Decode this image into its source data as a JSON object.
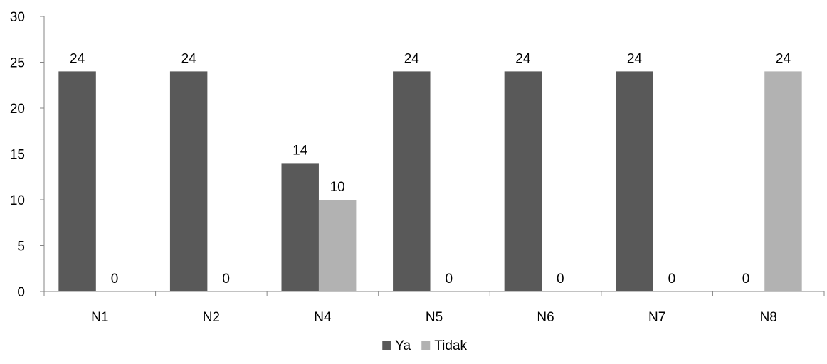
{
  "chart_data": {
    "type": "bar",
    "title": "",
    "xlabel": "",
    "ylabel": "",
    "categories": [
      "N1",
      "N2",
      "N4",
      "N5",
      "N6",
      "N7",
      "N8"
    ],
    "series": [
      {
        "name": "Ya",
        "color": "#595959",
        "values": [
          24,
          24,
          14,
          24,
          24,
          24,
          0
        ]
      },
      {
        "name": "Tidak",
        "color": "#b2b2b2",
        "values": [
          0,
          0,
          10,
          0,
          0,
          0,
          24
        ]
      }
    ],
    "ylim": [
      0,
      30
    ],
    "yticks": [
      0,
      5,
      10,
      15,
      20,
      25,
      30
    ],
    "grid": false,
    "data_labels": true,
    "legend_position": "bottom"
  }
}
